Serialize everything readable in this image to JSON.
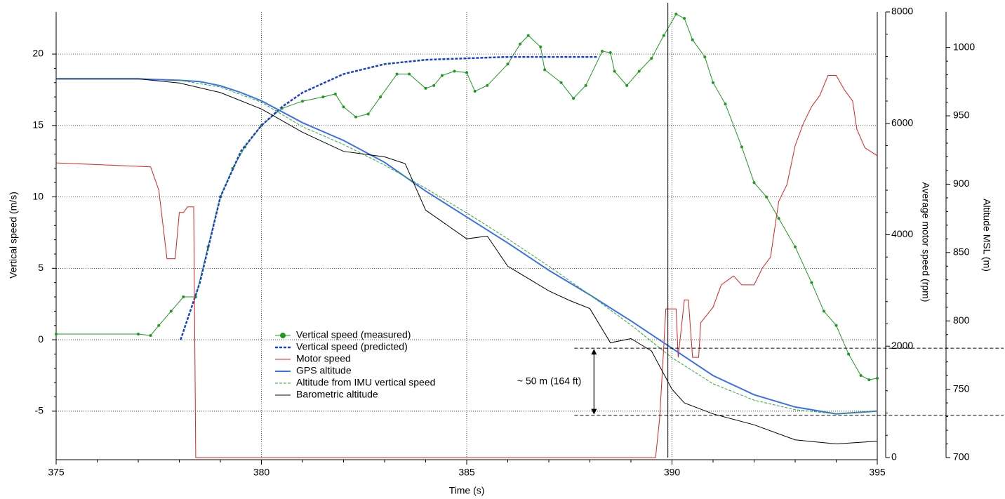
{
  "chart_data": {
    "type": "line",
    "x_label": "Time (s)",
    "y_label": "Vertical speed (m/s)",
    "y2_label": "Average motor speed (rpm)",
    "y3_label": "Altitude MSL (m)",
    "xlim": [
      375,
      395
    ],
    "xticks": [
      375,
      380,
      385,
      390,
      395
    ],
    "ylim": [
      -8.25,
      22.95
    ],
    "yticks": [
      -5,
      0,
      5,
      10,
      15,
      20
    ],
    "y2lim": [
      0,
      8000
    ],
    "y2ticks": [
      0,
      2000,
      4000,
      6000,
      8000
    ],
    "y3lim": [
      700,
      1026
    ],
    "y3ticks": [
      700,
      750,
      800,
      850,
      900,
      950,
      1000
    ],
    "grid": true,
    "legend": "center-left",
    "cursor_x": 389.9,
    "annotation": {
      "text": "~ 50 m (164 ft)",
      "x": 388.1,
      "y3": [
        731,
        780
      ]
    },
    "series": [
      {
        "name": "Vertical speed (measured)",
        "color": "#1f9a1f",
        "style": "solid-markers",
        "axis": "y",
        "x": [
          375,
          377,
          377.3,
          377.5,
          377.8,
          378.1,
          378.4,
          378.7,
          379.0,
          379.3,
          379.6,
          380.0,
          380.5,
          381.0,
          381.5,
          381.8,
          382.0,
          382.3,
          382.6,
          382.9,
          383.3,
          383.6,
          384.0,
          384.2,
          384.4,
          384.7,
          385.0,
          385.2,
          385.5,
          386.0,
          386.3,
          386.5,
          386.8,
          386.9,
          387.3,
          387.6,
          387.9,
          388.3,
          388.5,
          388.6,
          388.9,
          389.2,
          389.5,
          389.8,
          390.1,
          390.3,
          390.5,
          390.8,
          391.0,
          391.3,
          391.7,
          392.0,
          392.3,
          392.6,
          393.0,
          393.4,
          393.7,
          394.0,
          394.3,
          394.6,
          394.8,
          395.0
        ],
        "values": [
          0.4,
          0.4,
          0.3,
          1.0,
          2.0,
          3.0,
          3.0,
          6.5,
          10.0,
          12.0,
          13.5,
          15.0,
          16.2,
          16.7,
          17.0,
          17.2,
          16.3,
          15.6,
          15.8,
          17.0,
          18.6,
          18.6,
          17.6,
          17.8,
          18.5,
          18.8,
          18.7,
          17.4,
          17.8,
          19.3,
          20.7,
          21.3,
          20.5,
          18.9,
          18.0,
          16.9,
          17.8,
          20.2,
          20.1,
          18.8,
          17.8,
          18.8,
          19.7,
          21.3,
          22.8,
          22.5,
          21.0,
          19.8,
          18.0,
          16.5,
          13.5,
          11.0,
          10.0,
          8.5,
          6.5,
          4.0,
          2.0,
          1.0,
          -1.0,
          -2.5,
          -2.8,
          -2.7
        ]
      },
      {
        "name": "Vertical speed (predicted)",
        "color": "#1a3fd0",
        "style": "dashed-thick",
        "axis": "y",
        "x": [
          378.03,
          378.5,
          379,
          379.5,
          380,
          380.5,
          381,
          382,
          383,
          384,
          385,
          386,
          387,
          388.2
        ],
        "values": [
          0,
          4,
          10,
          13.2,
          15,
          16.3,
          17.3,
          18.6,
          19.3,
          19.6,
          19.7,
          19.8,
          19.8,
          19.8
        ]
      },
      {
        "name": "Motor speed",
        "color": "#e02020",
        "style": "solid",
        "axis": "y2",
        "x": [
          375,
          376,
          377.3,
          377.5,
          377.7,
          377.9,
          378.0,
          378.1,
          378.2,
          378.35,
          378.4,
          389.6,
          389.7,
          389.8,
          389.85,
          390.1,
          390.15,
          390.3,
          390.4,
          390.5,
          390.65,
          390.7,
          391.0,
          391.2,
          391.5,
          391.7,
          392.0,
          392.2,
          392.4,
          392.6,
          392.8,
          393.0,
          393.2,
          393.4,
          393.6,
          393.8,
          394.0,
          394.2,
          394.4,
          394.5,
          394.7,
          395.0
        ],
        "values": [
          5290,
          5260,
          5220,
          4800,
          3570,
          3570,
          4400,
          4400,
          4500,
          4500,
          0,
          0,
          700,
          2000,
          2670,
          2670,
          1800,
          2830,
          2830,
          1800,
          1800,
          2420,
          2700,
          3100,
          3260,
          3100,
          3100,
          3400,
          3600,
          4600,
          4900,
          5600,
          6000,
          6300,
          6500,
          6860,
          6860,
          6600,
          6400,
          5900,
          5560,
          5420
        ]
      },
      {
        "name": "GPS altitude",
        "color": "#3a6ff0",
        "style": "thick",
        "axis": "y3",
        "x": [
          375,
          377,
          378,
          378.5,
          379,
          379.5,
          380,
          381,
          382,
          383,
          384,
          385,
          386,
          387,
          388,
          389,
          390,
          391,
          392,
          393,
          394,
          395
        ],
        "values": [
          977,
          977,
          976,
          975,
          972,
          967,
          961,
          945,
          932,
          916,
          895,
          876,
          857,
          837,
          819,
          800,
          780,
          760,
          746,
          737,
          732,
          734
        ]
      },
      {
        "name": "Altitude from IMU vertical speed",
        "color": "#2aaa2a",
        "style": "dashed",
        "axis": "y3",
        "x": [
          378,
          379,
          380,
          381,
          382,
          383,
          384,
          385,
          386,
          387,
          388,
          389,
          390,
          391,
          392,
          393,
          394,
          395
        ],
        "values": [
          976,
          971,
          960,
          942,
          929,
          914,
          897,
          879,
          860,
          840,
          819,
          797,
          773,
          754,
          742,
          735,
          732,
          734
        ]
      },
      {
        "name": "Barometric altitude",
        "color": "#000000",
        "style": "solid",
        "axis": "y3",
        "x": [
          375,
          377,
          378,
          379,
          380,
          381,
          382,
          383,
          383.5,
          384,
          385,
          385.5,
          386,
          387,
          387.5,
          388,
          388.5,
          389,
          389.5,
          390,
          390.3,
          391,
          392,
          393,
          394,
          395
        ],
        "values": [
          977,
          977,
          974,
          967,
          955,
          938,
          924,
          920,
          915,
          881,
          860,
          862,
          840,
          822,
          815,
          809,
          784,
          787,
          778,
          750,
          740,
          732,
          724,
          713,
          710,
          712
        ]
      }
    ]
  }
}
